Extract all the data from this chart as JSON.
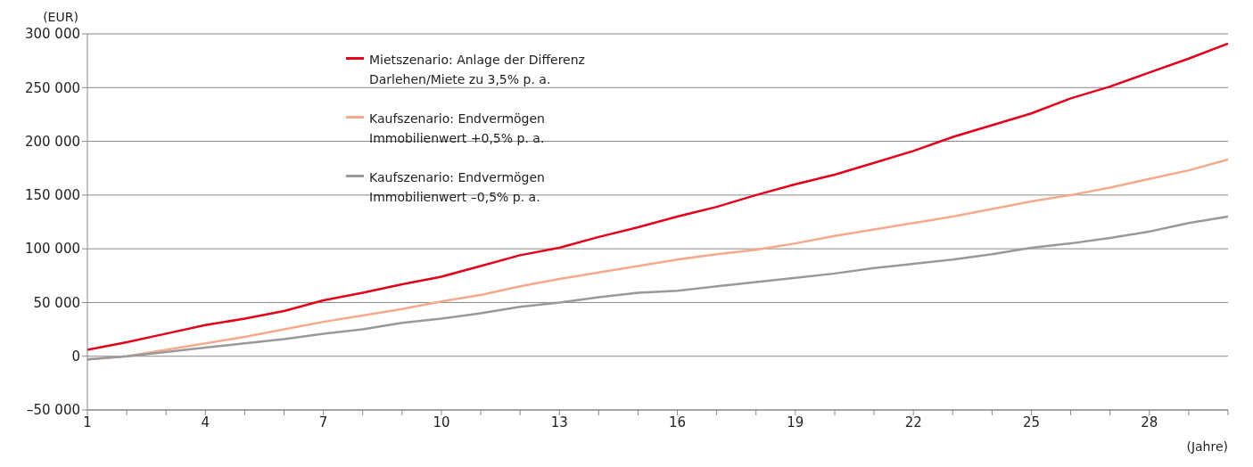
{
  "chart_data": {
    "type": "line",
    "ylabel": "(EUR)",
    "xlabel": "(Jahre)",
    "categories": [
      "1",
      null,
      null,
      "4",
      null,
      null,
      "7",
      null,
      null,
      "10",
      null,
      null,
      "13",
      null,
      null,
      "16",
      null,
      null,
      "19",
      null,
      null,
      "22",
      null,
      null,
      "25",
      null,
      null,
      "28",
      null,
      null
    ],
    "series": [
      {
        "name": "Mietszenario: Anlage der Differenz Darlehen/Miete zu 3,5% p. a.",
        "color": "#e2001a",
        "values": [
          6000,
          13000,
          21000,
          29000,
          35000,
          42000,
          52000,
          59000,
          67000,
          74000,
          84000,
          94000,
          101000,
          111000,
          120000,
          130000,
          139000,
          150000,
          160000,
          169000,
          180000,
          191000,
          204000,
          215000,
          226000,
          240000,
          251000,
          264000,
          277000,
          291000
        ]
      },
      {
        "name": "Kaufszenario: Endvermögen Immobilienwert +0,5% p. a.",
        "color": "#f5a98c",
        "values": [
          -3000,
          0,
          6000,
          12000,
          18000,
          25000,
          32000,
          38000,
          44000,
          51000,
          57000,
          65000,
          72000,
          78000,
          84000,
          90000,
          95000,
          99000,
          105000,
          112000,
          118000,
          124000,
          130000,
          137000,
          144000,
          150000,
          157000,
          165000,
          173000,
          183000
        ]
      },
      {
        "name": "Kaufszenario: Endvermögen Immobilienwert –0,5% p. a.",
        "color": "#999999",
        "values": [
          -3000,
          0,
          4000,
          8000,
          12000,
          16000,
          21000,
          25000,
          31000,
          35000,
          40000,
          46000,
          50000,
          55000,
          59000,
          61000,
          65000,
          69000,
          73000,
          77000,
          82000,
          86000,
          90000,
          95000,
          101000,
          105000,
          110000,
          116000,
          124000,
          130000
        ]
      }
    ],
    "ylim": [
      -50000,
      300000
    ],
    "yticks": [
      {
        "value": -50000,
        "label": "–50 000"
      },
      {
        "value": 0,
        "label": "0"
      },
      {
        "value": 50000,
        "label": "50 000"
      },
      {
        "value": 100000,
        "label": "100 000"
      },
      {
        "value": 150000,
        "label": "150 000"
      },
      {
        "value": 200000,
        "label": "200 000"
      },
      {
        "value": 250000,
        "label": "250 000"
      },
      {
        "value": 300000,
        "label": "300 000"
      }
    ],
    "grid": "y",
    "legend": "top",
    "marker": "none",
    "line_style": "solid"
  }
}
